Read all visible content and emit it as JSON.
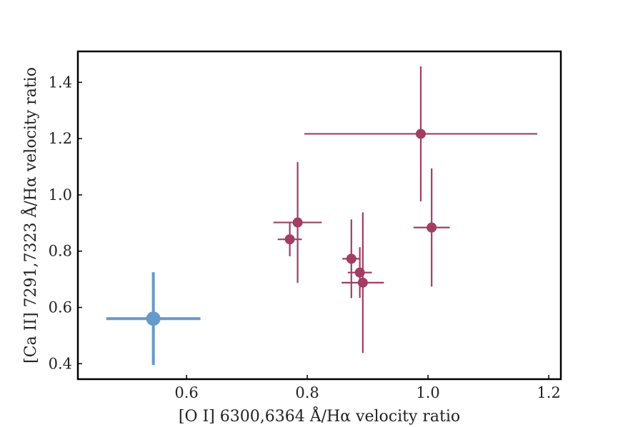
{
  "chart_data": {
    "type": "scatter",
    "title": "",
    "xlabel": "[O I] 6300,6364 Å/Hα velocity ratio",
    "ylabel": "[Ca II] 7291,7323 Å/Hα velocity ratio",
    "xlim": [
      0.42,
      1.22
    ],
    "ylim": [
      0.345,
      1.51
    ],
    "xticks": [
      {
        "value": 0.6,
        "label": "0.6"
      },
      {
        "value": 0.8,
        "label": "0.8"
      },
      {
        "value": 1.0,
        "label": "1.0"
      },
      {
        "value": 1.2,
        "label": "1.2"
      }
    ],
    "yticks": [
      {
        "value": 0.4,
        "label": "0.4"
      },
      {
        "value": 0.6,
        "label": "0.6"
      },
      {
        "value": 0.8,
        "label": "0.8"
      },
      {
        "value": 1.0,
        "label": "1.0"
      },
      {
        "value": 1.2,
        "label": "1.2"
      },
      {
        "value": 1.4,
        "label": "1.4"
      }
    ],
    "grid": false,
    "series": [
      {
        "color": "#a23d63",
        "points": [
          {
            "x": 0.771,
            "y": 0.842,
            "xerr": [
              0.02,
              0.02
            ],
            "yerr": [
              0.06,
              0.06
            ]
          },
          {
            "x": 0.784,
            "y": 0.902,
            "xerr": [
              0.04,
              0.04
            ],
            "yerr": [
              0.215,
              0.215
            ]
          },
          {
            "x": 0.873,
            "y": 0.773,
            "xerr": [
              0.015,
              0.015
            ],
            "yerr": [
              0.14,
              0.14
            ]
          },
          {
            "x": 0.887,
            "y": 0.724,
            "xerr": [
              0.02,
              0.02
            ],
            "yerr": [
              0.09,
              0.09
            ]
          },
          {
            "x": 0.892,
            "y": 0.688,
            "xerr": [
              0.035,
              0.035
            ],
            "yerr": [
              0.25,
              0.25
            ]
          },
          {
            "x": 0.988,
            "y": 1.217,
            "xerr": [
              0.193,
              0.193
            ],
            "yerr": [
              0.24,
              0.24
            ]
          },
          {
            "x": 1.006,
            "y": 0.884,
            "xerr": [
              0.03,
              0.03
            ],
            "yerr": [
              0.21,
              0.21
            ]
          }
        ]
      },
      {
        "color": "#6699cc",
        "points": [
          {
            "x": 0.545,
            "y": 0.56,
            "xerr": [
              0.078,
              0.078
            ],
            "yerr": [
              0.165,
              0.165
            ]
          }
        ]
      }
    ]
  }
}
